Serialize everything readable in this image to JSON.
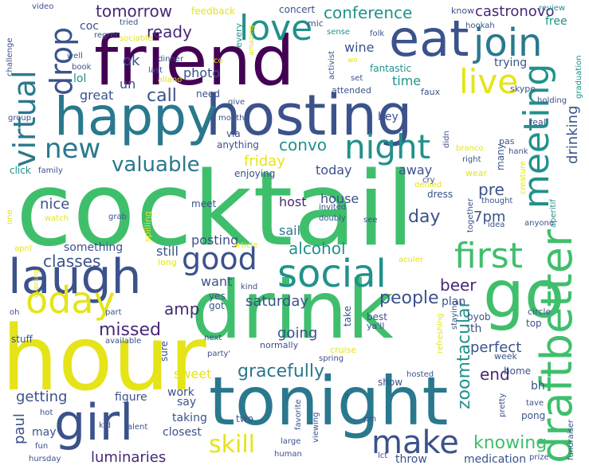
{
  "palette": {
    "green": "#3fbf6c",
    "lime": "#b8de29",
    "yellow": "#e5e419",
    "teal": "#21918c",
    "blue": "#2a788e",
    "indigo": "#3b528b",
    "purple": "#482878",
    "dark": "#440154"
  },
  "words": {
    "cocktail": "cocktail",
    "drink": "drink",
    "hour": "hour",
    "tonight": "tonight",
    "friend": "friend",
    "hosting": "hosting",
    "happy": "happy",
    "eat": "eat",
    "join": "join",
    "laugh": "laugh",
    "girl": "girl",
    "go": "go",
    "draftbetter": "draftbetter",
    "social": "social",
    "oday": "oday",
    "night": "night",
    "meeting": "meeting",
    "love": "love",
    "live": "live",
    "drop": "drop",
    "virtual": "virtual",
    "new": "new",
    "first": "first",
    "make": "make",
    "good": "good",
    "valuable": "valuable",
    "skill": "skill",
    "gracefully": "gracefully",
    "knowing": "knowing",
    "zoomtacular": "zoomtacular",
    "conference": "conference",
    "castronovo": "castronovo",
    "tomorrow": "tomorrow",
    "ready": "ready",
    "call": "call",
    "convo": "convo",
    "friday": "friday",
    "classes": "classes",
    "alcohol": "alcohol",
    "people": "people",
    "saturday": "saturday",
    "missed": "missed",
    "amp": "amp",
    "beer": "beer",
    "perfect": "perfect",
    "getting": "getting",
    "luminaries": "luminaries",
    "paul": "paul",
    "medication": "medication",
    "drinking": "drinking",
    "end": "end",
    "sweet": "sweet",
    "going": "going",
    "day": "day",
    "house": "house",
    "host": "host",
    "sail": "sail",
    "pre": "pre",
    "7pm": "7pm",
    "nice": "nice",
    "today": "today",
    "away": "away",
    "want": "want",
    "still": "still",
    "something": "something",
    "posting": "posting",
    "photo": "photo",
    "great": "great",
    "ok": "ok",
    "un": "un",
    "lol": "lol",
    "wine": "wine",
    "time": "time",
    "hey": "hey",
    "coc": "coc",
    "video": "video",
    "challenge": "challenge",
    "feedback": "feedback",
    "concert": "concert",
    "know": "know",
    "free": "free",
    "hookah": "hookah",
    "review": "review",
    "regret": "regret",
    "tried": "tried",
    "sociable": "sociable",
    "mic": "mic",
    "sense": "sense",
    "folk": "folk",
    "every": "every",
    "amazing": "amazing",
    "activist": "activist",
    "wo": "wo",
    "trying": "trying",
    "graduation": "graduation",
    "fantastic": "fantastic",
    "set": "set",
    "last": "last",
    "book": "book",
    "dinner": "dinner",
    "allano": "allano",
    "co": "co",
    "well": "well",
    "need": "need",
    "attended": "attended",
    "faux": "faux",
    "skype": "skype",
    "holding": "holding",
    "group": "group",
    "give": "give",
    "month": "month",
    "real": "real",
    "pas": "pas",
    "hank": "hank",
    "via": "via",
    "anything": "anything",
    "didn": "didn",
    "many": "many",
    "click": "click",
    "family": "family",
    "enjoying": "enjoying",
    "denied": "denied",
    "wear": "wear",
    "right": "right",
    "branco": "branco",
    "creature": "creature",
    "cry": "cry",
    "dress": "dress",
    "together": "together",
    "thought": "thought",
    "aperitif": "aperitif",
    "meet": "meet",
    "invited": "invited",
    "doubly": "doubly",
    "see": "see",
    "idea": "idea",
    "anyone": "anyone",
    "one": "one",
    "watch": "watch",
    "grab": "grab",
    "spilling": "spilling",
    "april": "april",
    "article": "article",
    "aculer": "aculer",
    "long": "long",
    "kind": "kind",
    "evening": "evening",
    "yes": "yes",
    "take": "take",
    "staying": "staying",
    "circle": "circle",
    "oh": "oh",
    "part": "part",
    "got": "got",
    "plan": "plan",
    "best": "best",
    "th": "th",
    "top": "top",
    "stuff": "stuff",
    "available": "available",
    "next": "next",
    "normally": "normally",
    "yall": "ya'll",
    "byob": "byob",
    "refreshing": "refreshing",
    "cruise": "cruise",
    "sure": "sure",
    "spring": "spring",
    "week": "week",
    "party": "party'",
    "home": "home",
    "figure": "figure",
    "work": "work",
    "say": "say",
    "show": "show",
    "hosted": "hosted",
    "bh": "bh",
    "taking": "taking",
    "closest": "closest",
    "two": "two",
    "pm": "pm",
    "ll": "ll",
    "favorite": "favorite",
    "viewing": "viewing",
    "pretty": "pretty",
    "tave": "tave",
    "pong": "pong",
    "fundraiser": "fundraiser",
    "hot": "hot",
    "kid": "kid",
    "alent": "alent",
    "may": "may",
    "fun": "fun",
    "hursday": "hursday",
    "large": "large",
    "human": "human",
    "lct": "lct",
    "throw": "throw",
    "prize": "prize"
  }
}
